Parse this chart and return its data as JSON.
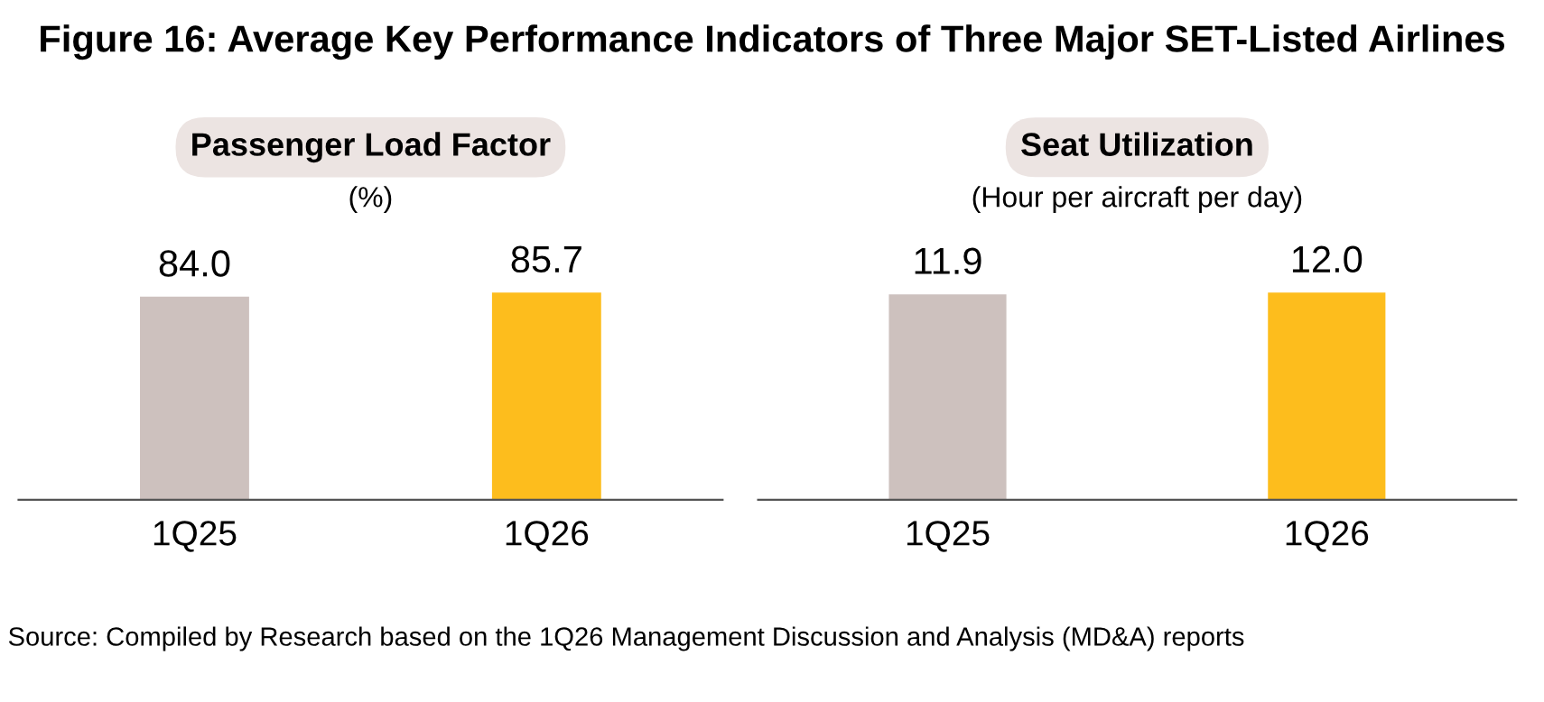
{
  "chart_data": [
    {
      "type": "bar",
      "title": "Passenger Load Factor",
      "subtitle": "(%)",
      "categories": [
        "1Q25",
        "1Q26"
      ],
      "values": [
        84.0,
        85.7
      ],
      "value_labels": [
        "84.0",
        "85.7"
      ],
      "colors": [
        "#cdc1be",
        "#fdbd1d"
      ],
      "tick_labels": "x",
      "grid": false,
      "annotations": [
        "Figure 16: Average Key Performance Indicators of Three Major SET-Listed Airlines"
      ]
    },
    {
      "type": "bar",
      "title": "Seat Utilization",
      "subtitle": "(Hour per aircraft per day)",
      "categories": [
        "1Q25",
        "1Q26"
      ],
      "values": [
        11.9,
        12.0
      ],
      "value_labels": [
        "11.9",
        "12.0"
      ],
      "colors": [
        "#cdc1be",
        "#fdbd1d"
      ],
      "tick_labels": "x",
      "grid": false,
      "annotations": [
        "Source: Compiled by Research based on the 1Q26 Management Discussion and Analysis (MD&A) reports"
      ]
    }
  ]
}
